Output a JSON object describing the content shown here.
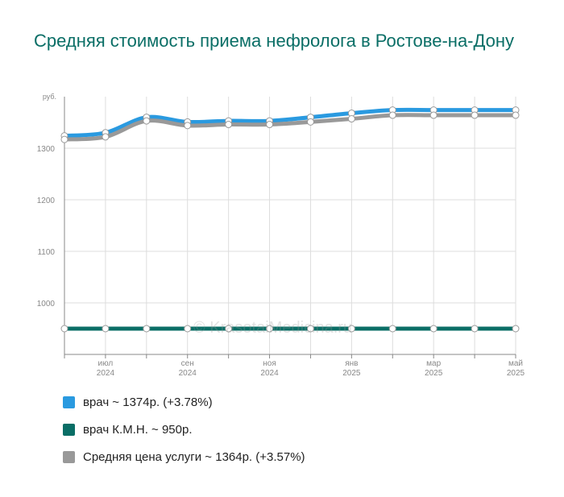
{
  "chart_data": {
    "type": "line",
    "title": "Средняя стоимость приема нефролога в Ростове-на-Дону",
    "y_unit_label": "руб.",
    "ylim": [
      900,
      1400
    ],
    "y_ticks": [
      1000,
      1100,
      1200,
      1300
    ],
    "x_tick_labels": [
      {
        "month": "июл",
        "year": "2024"
      },
      {
        "month": "сен",
        "year": "2024"
      },
      {
        "month": "ноя",
        "year": "2024"
      },
      {
        "month": "янв",
        "year": "2025"
      },
      {
        "month": "мар",
        "year": "2025"
      },
      {
        "month": "май",
        "year": "2025"
      }
    ],
    "x": [
      "2024-06-01",
      "2024-07-01",
      "2024-08-01",
      "2024-09-01",
      "2024-10-01",
      "2024-11-01",
      "2024-12-01",
      "2025-01-01",
      "2025-02-01",
      "2025-03-01",
      "2025-04-01",
      "2025-05-01"
    ],
    "grid": true,
    "series": [
      {
        "name": "врач ~ 1374р. (+3.78%)",
        "color": "#2a9ae0",
        "values": [
          1324,
          1330,
          1360,
          1351,
          1353,
          1353,
          1360,
          1368,
          1374,
          1374,
          1374,
          1374
        ]
      },
      {
        "name": "врач К.М.Н. ~ 950р.",
        "color": "#0a6e66",
        "values": [
          950,
          950,
          950,
          950,
          950,
          950,
          950,
          950,
          950,
          950,
          950,
          950
        ]
      },
      {
        "name": "Средняя цена услуги ~ 1364р. (+3.57%)",
        "color": "#999999",
        "values": [
          1317,
          1322,
          1353,
          1344,
          1346,
          1346,
          1351,
          1357,
          1364,
          1364,
          1364,
          1364
        ]
      }
    ]
  },
  "watermark": "© KrasotaiMedicina.ru"
}
